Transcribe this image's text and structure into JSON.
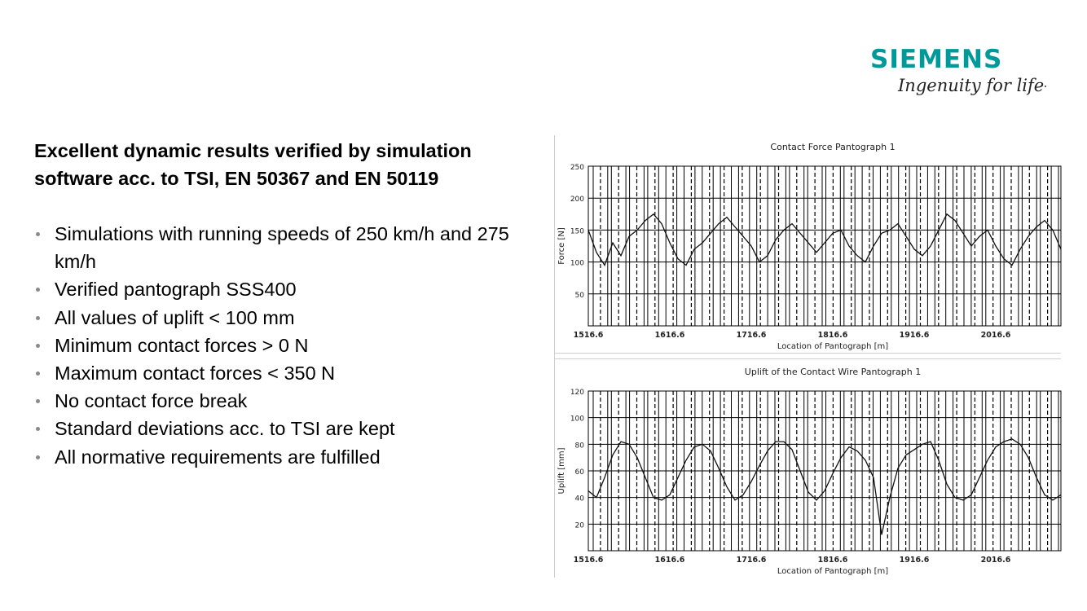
{
  "logo": {
    "wordmark": "SIEMENS",
    "tagline": "Ingenuity for life",
    "brand_color": "#009999"
  },
  "headline": "Excellent dynamic results verified by simulation software acc. to TSI, EN 50367 and EN 50119",
  "bullets": [
    "Simulations with running speeds of 250 km/h and 275 km/h",
    "Verified pantograph SSS400",
    "All values of uplift < 100 mm",
    "Minimum contact forces > 0 N",
    "Maximum contact forces < 350 N",
    "No contact force break",
    "Standard deviations acc. to TSI are kept",
    "All normative requirements are fulfilled"
  ],
  "chart_data": [
    {
      "type": "line",
      "title": "Contact Force Pantograph 1",
      "xlabel": "Location of Pantograph [m]",
      "ylabel": "Force [N]",
      "xlim": [
        1516.6,
        2096.6
      ],
      "ylim": [
        0,
        250
      ],
      "xticks": [
        "1516.6",
        "1616.6",
        "1716.6",
        "1816.6",
        "1916.6",
        "2016.6"
      ],
      "yticks": [
        "50",
        "100",
        "150",
        "200",
        "250"
      ],
      "grid": true,
      "series": [
        {
          "x": [
            1516.6,
            1526.6,
            1536.6,
            1546.6,
            1556.6,
            1566.6,
            1576.6,
            1586.6,
            1596.6,
            1606.6,
            1616.6,
            1626.6,
            1636.6,
            1646.6,
            1656.6,
            1666.6,
            1676.6,
            1686.6,
            1696.6,
            1706.6,
            1716.6,
            1726.6,
            1736.6,
            1746.6,
            1756.6,
            1766.6,
            1776.6,
            1786.6,
            1796.6,
            1806.6,
            1816.6,
            1826.6,
            1836.6,
            1846.6,
            1856.6,
            1866.6,
            1876.6,
            1886.6,
            1896.6,
            1906.6,
            1916.6,
            1926.6,
            1936.6,
            1946.6,
            1956.6,
            1966.6,
            1976.6,
            1986.6,
            1996.6,
            2006.6,
            2016.6,
            2026.6,
            2036.6,
            2046.6,
            2056.6,
            2066.6,
            2076.6,
            2086.6,
            2096.6
          ],
          "values": [
            150,
            115,
            95,
            130,
            110,
            140,
            150,
            165,
            175,
            160,
            130,
            105,
            95,
            120,
            130,
            145,
            160,
            170,
            155,
            140,
            125,
            100,
            110,
            135,
            150,
            160,
            145,
            130,
            115,
            130,
            145,
            150,
            125,
            110,
            100,
            125,
            145,
            150,
            160,
            140,
            120,
            110,
            125,
            150,
            175,
            165,
            145,
            125,
            140,
            150,
            125,
            105,
            95,
            120,
            140,
            155,
            165,
            150,
            120
          ]
        }
      ]
    },
    {
      "type": "line",
      "title": "Uplift of the Contact Wire Pantograph 1",
      "xlabel": "Location of Pantograph [m]",
      "ylabel": "Uplift [mm]",
      "xlim": [
        1516.6,
        2096.6
      ],
      "ylim": [
        0,
        120
      ],
      "xticks": [
        "1516.6",
        "1616.6",
        "1716.6",
        "1816.6",
        "1916.6",
        "2016.6"
      ],
      "yticks": [
        "20",
        "40",
        "60",
        "80",
        "100",
        "120"
      ],
      "grid": true,
      "series": [
        {
          "x": [
            1516.6,
            1526.6,
            1536.6,
            1546.6,
            1556.6,
            1566.6,
            1576.6,
            1586.6,
            1596.6,
            1606.6,
            1616.6,
            1626.6,
            1636.6,
            1646.6,
            1656.6,
            1666.6,
            1676.6,
            1686.6,
            1696.6,
            1706.6,
            1716.6,
            1726.6,
            1736.6,
            1746.6,
            1756.6,
            1766.6,
            1776.6,
            1786.6,
            1796.6,
            1806.6,
            1816.6,
            1826.6,
            1836.6,
            1846.6,
            1856.6,
            1866.6,
            1876.6,
            1886.6,
            1896.6,
            1906.6,
            1916.6,
            1926.6,
            1936.6,
            1946.6,
            1956.6,
            1966.6,
            1976.6,
            1986.6,
            1996.6,
            2006.6,
            2016.6,
            2026.6,
            2036.6,
            2046.6,
            2056.6,
            2066.6,
            2076.6,
            2086.6,
            2096.6
          ],
          "values": [
            45,
            40,
            55,
            72,
            82,
            80,
            70,
            55,
            40,
            38,
            42,
            55,
            68,
            78,
            80,
            75,
            62,
            48,
            38,
            42,
            52,
            64,
            75,
            82,
            82,
            76,
            60,
            44,
            38,
            45,
            58,
            70,
            78,
            75,
            68,
            55,
            12,
            40,
            62,
            72,
            76,
            80,
            82,
            68,
            50,
            40,
            38,
            42,
            55,
            68,
            78,
            82,
            84,
            80,
            70,
            55,
            42,
            38,
            42
          ]
        }
      ]
    }
  ]
}
